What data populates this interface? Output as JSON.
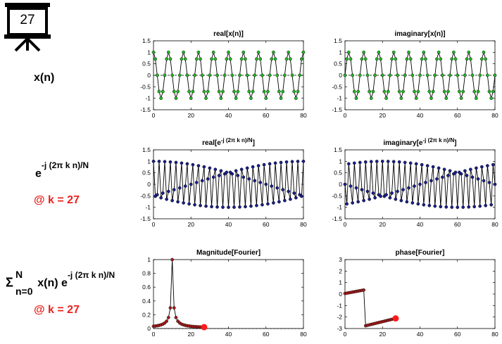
{
  "slide": {
    "number": "27"
  },
  "row_labels": {
    "xn": "x(n)",
    "kernel_base": "e",
    "kernel_exp": "-j (2π k n)/N",
    "kernel_at": "@ k = 27",
    "sum_sigma": "Σ",
    "sum_upper": "N",
    "sum_lower": "n=0",
    "sum_body": "x(n) e",
    "sum_exp": "-j (2π k n)/N",
    "sum_at": "@ k = 27"
  },
  "colors": {
    "green_marker": "#22bb22",
    "blue_marker": "#1a1f8c",
    "red_marker": "#a81c1c",
    "highlight": "#ff1a1a",
    "accent_red": "#e8211d"
  },
  "chart_data": [
    {
      "id": "p1",
      "type": "line",
      "title": "real[x(n)]",
      "xlim": [
        0,
        80
      ],
      "ylim": [
        -1.5,
        1.5
      ],
      "xticks": [
        "0",
        "20",
        "40",
        "60",
        "80"
      ],
      "yticks": [
        "1.5",
        "1",
        "0.5",
        "0",
        "-0.5",
        "-1",
        "-1.5"
      ],
      "marker_color": "green",
      "dashed_zero": true,
      "func": "cos(2*pi*10*n/80)",
      "n_points": 81
    },
    {
      "id": "p2",
      "type": "line",
      "title": "imaginary[x(n)]",
      "xlim": [
        0,
        80
      ],
      "ylim": [
        -1.5,
        1.5
      ],
      "xticks": [
        "0",
        "20",
        "40",
        "60",
        "80"
      ],
      "yticks": [
        "1.5",
        "1",
        "0.5",
        "0",
        "-0.5",
        "-1",
        "-1.5"
      ],
      "marker_color": "green",
      "dashed_zero": true,
      "func": "sin(2*pi*10*n/80)",
      "n_points": 81
    },
    {
      "id": "p3",
      "type": "line",
      "title_main": "real[e",
      "title_exp": "-j (2π k n)/N",
      "title_end": "]",
      "xlim": [
        0,
        80
      ],
      "ylim": [
        -1.5,
        1.5
      ],
      "xticks": [
        "0",
        "20",
        "40",
        "60",
        "80"
      ],
      "yticks": [
        "1.5",
        "1",
        "0.5",
        "0",
        "-0.5",
        "-1",
        "-1.5"
      ],
      "marker_color": "blue",
      "dashed_zero": false,
      "func": "cos(2*pi*27*n/80)",
      "n_points": 81
    },
    {
      "id": "p4",
      "type": "line",
      "title_main": "imaginary[e",
      "title_exp": "-j (2π k n)/N",
      "title_end": "]",
      "xlim": [
        0,
        80
      ],
      "ylim": [
        -1.5,
        1.5
      ],
      "xticks": [
        "0",
        "20",
        "40",
        "60",
        "80"
      ],
      "yticks": [
        "1.5",
        "1",
        "0.5",
        "0",
        "-0.5",
        "-1",
        "-1.5"
      ],
      "marker_color": "blue",
      "dashed_zero": false,
      "func": "-sin(2*pi*27*n/80)",
      "n_points": 81
    },
    {
      "id": "p5",
      "type": "line",
      "title": "Magnitude[Fourier]",
      "xlim": [
        0,
        80
      ],
      "ylim": [
        0,
        1
      ],
      "xticks": [
        "0",
        "20",
        "40",
        "60",
        "80"
      ],
      "yticks": [
        "1",
        "0.8",
        "0.6",
        "0.4",
        "0.2",
        "0"
      ],
      "marker_color": "red",
      "dashed_zero": true,
      "func": "magnitude",
      "n_points": 28,
      "highlight_k": 27
    },
    {
      "id": "p6",
      "type": "line",
      "title": "phase[Fourier]",
      "xlim": [
        0,
        80
      ],
      "ylim": [
        -3,
        3
      ],
      "xticks": [
        "0",
        "20",
        "40",
        "60",
        "80"
      ],
      "yticks": [
        "3",
        "2",
        "1",
        "0",
        "-1",
        "-2",
        "-3"
      ],
      "marker_color": "red",
      "dashed_zero": false,
      "func": "phase",
      "n_points": 28,
      "highlight_k": 27
    }
  ]
}
